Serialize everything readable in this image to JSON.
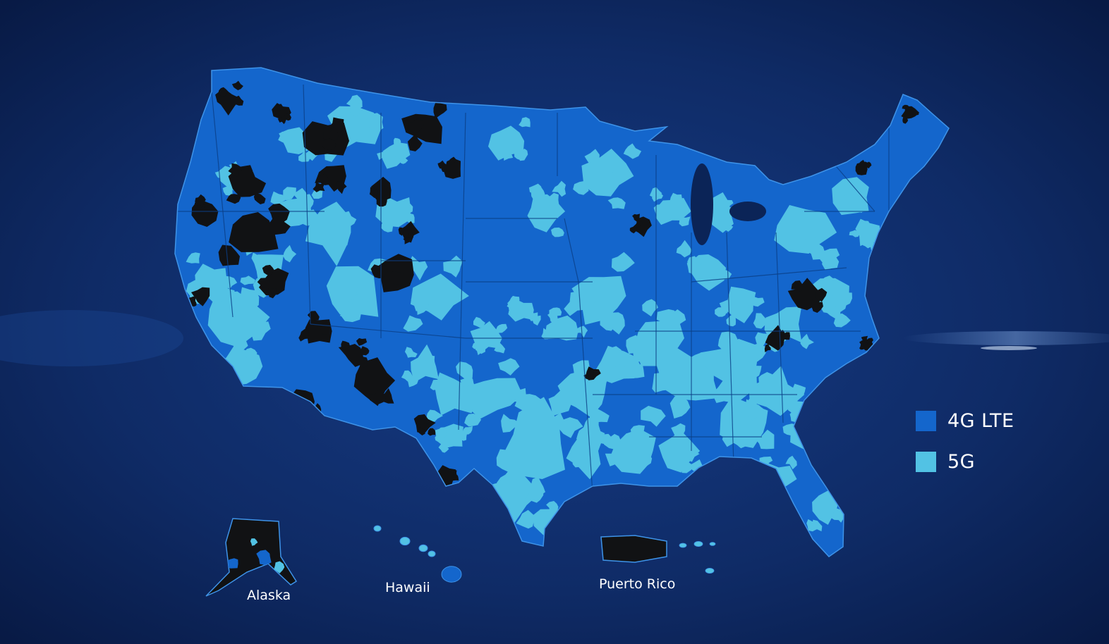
{
  "map": {
    "colors": {
      "background": "#0b2457",
      "lte": "#1466cc",
      "fiveg": "#52c2e4",
      "no_coverage": "#111214",
      "border": "#0b3f86"
    }
  },
  "legend": {
    "items": [
      {
        "label": "4G LTE",
        "color": "#1466cc"
      },
      {
        "label": "5G",
        "color": "#52c2e4"
      }
    ]
  },
  "territories": {
    "alaska": "Alaska",
    "hawaii": "Hawaii",
    "puerto_rico": "Puerto Rico"
  }
}
